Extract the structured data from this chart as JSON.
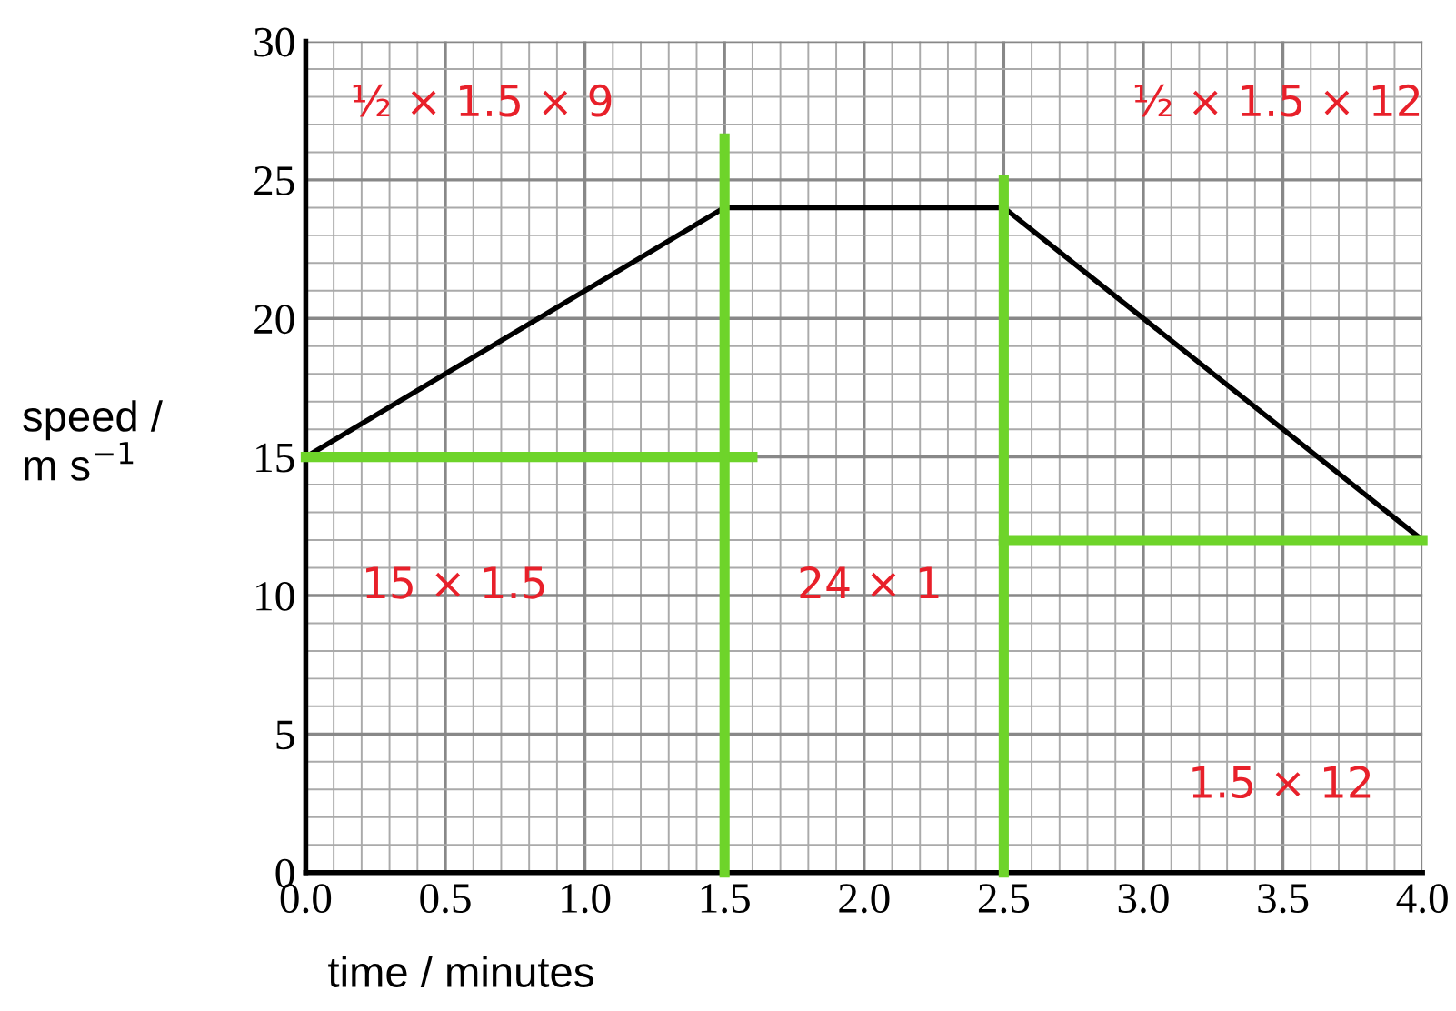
{
  "chart_data": {
    "type": "line",
    "xlabel": "time / minutes",
    "ylabel": "speed /\nm s$^{−1}$",
    "xlim": [
      0,
      4
    ],
    "ylim": [
      0,
      30
    ],
    "xticks": [
      {
        "value": 0,
        "label": "0.0"
      },
      {
        "value": 0.5,
        "label": "0.5"
      },
      {
        "value": 1,
        "label": "1.0"
      },
      {
        "value": 1.5,
        "label": "1.5"
      },
      {
        "value": 2,
        "label": "2.0"
      },
      {
        "value": 2.5,
        "label": "2.5"
      },
      {
        "value": 3,
        "label": "3.0"
      },
      {
        "value": 3.5,
        "label": "3.5"
      },
      {
        "value": 4,
        "label": "4.0"
      }
    ],
    "yticks": [
      0,
      5,
      10,
      15,
      20,
      25,
      30
    ],
    "grid": true,
    "marker": "none",
    "line_style": "solid",
    "series": [
      {
        "color": "#000000",
        "x": [
          0,
          1.5,
          2.5,
          4
        ],
        "values": [
          15,
          24,
          24,
          12
        ]
      },
      {
        "color": "#6ed42a",
        "x": [
          0,
          1.6
        ],
        "values": [
          15,
          15
        ]
      },
      {
        "color": "#6ed42a",
        "x": [
          1.5,
          1.5
        ],
        "values": [
          0,
          26.5
        ]
      },
      {
        "color": "#6ed42a",
        "x": [
          2.5,
          2.5
        ],
        "values": [
          0,
          25
        ]
      },
      {
        "color": "#6ed42a",
        "x": [
          2.5,
          4
        ],
        "values": [
          12,
          12
        ]
      }
    ],
    "annotations": [
      "½ × 1.5 × 9",
      "½ × 1.5 × 12",
      "15 × 1.5",
      "24 × 1",
      "1.5 × 12"
    ]
  }
}
